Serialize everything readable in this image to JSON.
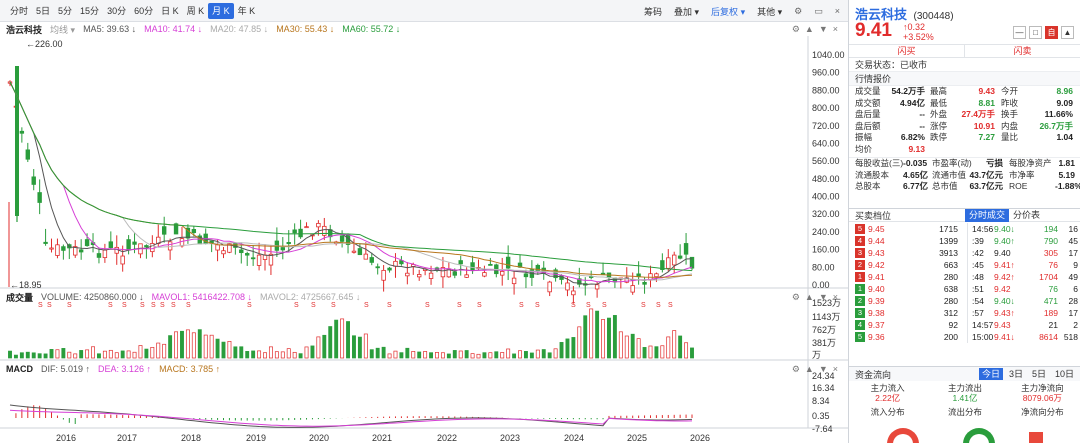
{
  "toolbar": {
    "periods": [
      "分时",
      "5日",
      "5分",
      "15分",
      "30分",
      "60分",
      "日 K",
      "周 K",
      "月 K",
      "年 K"
    ],
    "active_period": "月 K",
    "right_items": [
      "筹码",
      "叠加",
      "后复权",
      "其他"
    ],
    "icons": [
      "gear-icon",
      "window-icon",
      "close-icon"
    ]
  },
  "ma_legend": {
    "stock_name": "浩云科技",
    "chart_kind": "均线",
    "ma5": "MA5: 39.63 ↓",
    "ma10": "MA10: 41.74 ↓",
    "ma20": "MA20: 47.85 ↓",
    "ma30": "MA30: 55.43 ↓",
    "ma60": "MA60: 55.72 ↓",
    "colors": {
      "ma5": "#555555",
      "ma10": "#d63fd6",
      "ma20": "#bbbbbb",
      "ma30": "#b8761e",
      "ma60": "#2a9d3c"
    }
  },
  "volume_legend": {
    "label": "成交量",
    "volume": "VOLUME: 4250860.000 ↓",
    "mavol1": "MAVOL1: 5416422.708 ↓",
    "mavol2": "MAVOL2: 4725667.645 ↓"
  },
  "macd_legend": {
    "label": "MACD",
    "dif": "DIF: 5.019 ↑",
    "dea": "DEA: 3.126 ↑",
    "macd": "MACD: 3.785 ↑"
  },
  "price_axis": [
    "1040.00",
    "960.00",
    "880.00",
    "800.00",
    "720.00",
    "640.00",
    "560.00",
    "480.00",
    "400.00",
    "320.00",
    "240.00",
    "160.00",
    "80.00",
    "0.00"
  ],
  "volume_axis": [
    "1523万",
    "1143万",
    "762万",
    "381万",
    "万"
  ],
  "macd_axis": [
    "24.34",
    "16.34",
    "8.34",
    "0.35",
    "-7.64"
  ],
  "year_labels": [
    "2016",
    "2017",
    "2018",
    "2019",
    "2020",
    "2021",
    "2022",
    "2023",
    "2024",
    "2025",
    "2026"
  ],
  "annotations": {
    "high": "226.00",
    "low": "18.95",
    "marker": "S"
  },
  "quote": {
    "name": "浩云科技",
    "code": "(300448)",
    "price": "9.41",
    "change": "↑0.32",
    "change_pct": "+3.52%",
    "buttons": [
      "—",
      "□",
      "自",
      "▲"
    ],
    "buy_label": "闪买",
    "sell_label": "闪卖",
    "trade_status": "交易状态：已收市",
    "section_title": "行情报价",
    "rows": [
      {
        "l1": "成交量",
        "v1": "54.2万手",
        "c1": "k",
        "l2": "最高",
        "v2": "9.43",
        "c2": "r",
        "l3": "今开",
        "v3": "8.96",
        "c3": "g"
      },
      {
        "l1": "成交额",
        "v1": "4.94亿",
        "c1": "k",
        "l2": "最低",
        "v2": "8.81",
        "c2": "g",
        "l3": "昨收",
        "v3": "9.09",
        "c3": "k"
      },
      {
        "l1": "盘后量",
        "v1": "--",
        "c1": "k",
        "l2": "外盘",
        "v2": "27.4万手",
        "c2": "r",
        "l3": "换手",
        "v3": "11.66%",
        "c3": "k"
      },
      {
        "l1": "盘后额",
        "v1": "--",
        "c1": "k",
        "l2": "涨停",
        "v2": "10.91",
        "c2": "r",
        "l3": "内盘",
        "v3": "26.7万手",
        "c3": "g"
      },
      {
        "l1": "振幅",
        "v1": "6.82%",
        "c1": "k",
        "l2": "跌停",
        "v2": "7.27",
        "c2": "g",
        "l3": "量比",
        "v3": "1.04",
        "c3": "k"
      },
      {
        "l1": "均价",
        "v1": "9.13",
        "c1": "r",
        "l2": "",
        "v2": "",
        "c2": "k",
        "l3": "",
        "v3": "",
        "c3": "k"
      }
    ],
    "rows2": [
      {
        "l1": "每股收益(三)",
        "v1": "-0.035",
        "c1": "k",
        "l2": "市盈率(动)",
        "v2": "亏损",
        "c2": "k",
        "l3": "每股净资产",
        "v3": "1.81",
        "c3": "k"
      },
      {
        "l1": "流通股本",
        "v1": "4.65亿",
        "c1": "k",
        "l2": "流通市值",
        "v2": "43.7亿元",
        "c2": "k",
        "l3": "市净率",
        "v3": "5.19",
        "c3": "k"
      },
      {
        "l1": "总股本",
        "v1": "6.77亿",
        "c1": "k",
        "l2": "总市值",
        "v2": "63.7亿元",
        "c2": "k",
        "l3": "ROE",
        "v3": "-1.88%",
        "c3": "k"
      }
    ]
  },
  "order_book": {
    "title": "买卖档位",
    "tabs": [
      "分时成交",
      "分价表"
    ],
    "sells": [
      {
        "n": "5",
        "price": "9.45",
        "vol": "1715"
      },
      {
        "n": "4",
        "price": "9.44",
        "vol": "1399"
      },
      {
        "n": "3",
        "price": "9.43",
        "vol": "3913"
      },
      {
        "n": "2",
        "price": "9.42",
        "vol": "663"
      },
      {
        "n": "1",
        "price": "9.41",
        "vol": "280"
      }
    ],
    "buys": [
      {
        "n": "1",
        "price": "9.40",
        "vol": "638"
      },
      {
        "n": "2",
        "price": "9.39",
        "vol": "280"
      },
      {
        "n": "3",
        "price": "9.38",
        "vol": "312"
      },
      {
        "n": "4",
        "price": "9.37",
        "vol": "92"
      },
      {
        "n": "5",
        "price": "9.36",
        "vol": "200"
      }
    ]
  },
  "ticks": [
    {
      "t": "14:56",
      "p": "9.40↓",
      "pc": "g",
      "v": "194",
      "vc": "g",
      "n": "16"
    },
    {
      "t": ":39",
      "p": "9.40↑",
      "pc": "g",
      "v": "790",
      "vc": "g",
      "n": "45"
    },
    {
      "t": ":42",
      "p": "9.40",
      "pc": "k",
      "v": "305",
      "vc": "r",
      "n": "17"
    },
    {
      "t": ":45",
      "p": "9.41↑",
      "pc": "r",
      "v": "76",
      "vc": "r",
      "n": "9"
    },
    {
      "t": ":48",
      "p": "9.42↑",
      "pc": "r",
      "v": "1704",
      "vc": "r",
      "n": "49"
    },
    {
      "t": ":51",
      "p": "9.42",
      "pc": "r",
      "v": "76",
      "vc": "g",
      "n": "6"
    },
    {
      "t": ":54",
      "p": "9.40↓",
      "pc": "g",
      "v": "471",
      "vc": "g",
      "n": "28"
    },
    {
      "t": ":57",
      "p": "9.43↑",
      "pc": "r",
      "v": "189",
      "vc": "r",
      "n": "17"
    },
    {
      "t": "14:57",
      "p": "9.43",
      "pc": "r",
      "v": "21",
      "vc": "k",
      "n": "2"
    },
    {
      "t": "15:00",
      "p": "9.41↓",
      "pc": "r",
      "v": "8614",
      "vc": "r",
      "n": "518"
    }
  ],
  "fund_flow": {
    "title": "资金流向",
    "tabs": [
      "今日",
      "3日",
      "5日",
      "10日"
    ],
    "labels": [
      "主力流入",
      "主力流出",
      "主力净流向"
    ],
    "values": [
      "2.22亿",
      "1.41亿",
      "8079.06万"
    ],
    "value_colors": [
      "r",
      "g",
      "r"
    ],
    "sub_labels": [
      "流入分布",
      "流出分布",
      "净流向分布"
    ],
    "inflow_color": "#e8483b",
    "outflow_color": "#2a9d3c"
  }
}
